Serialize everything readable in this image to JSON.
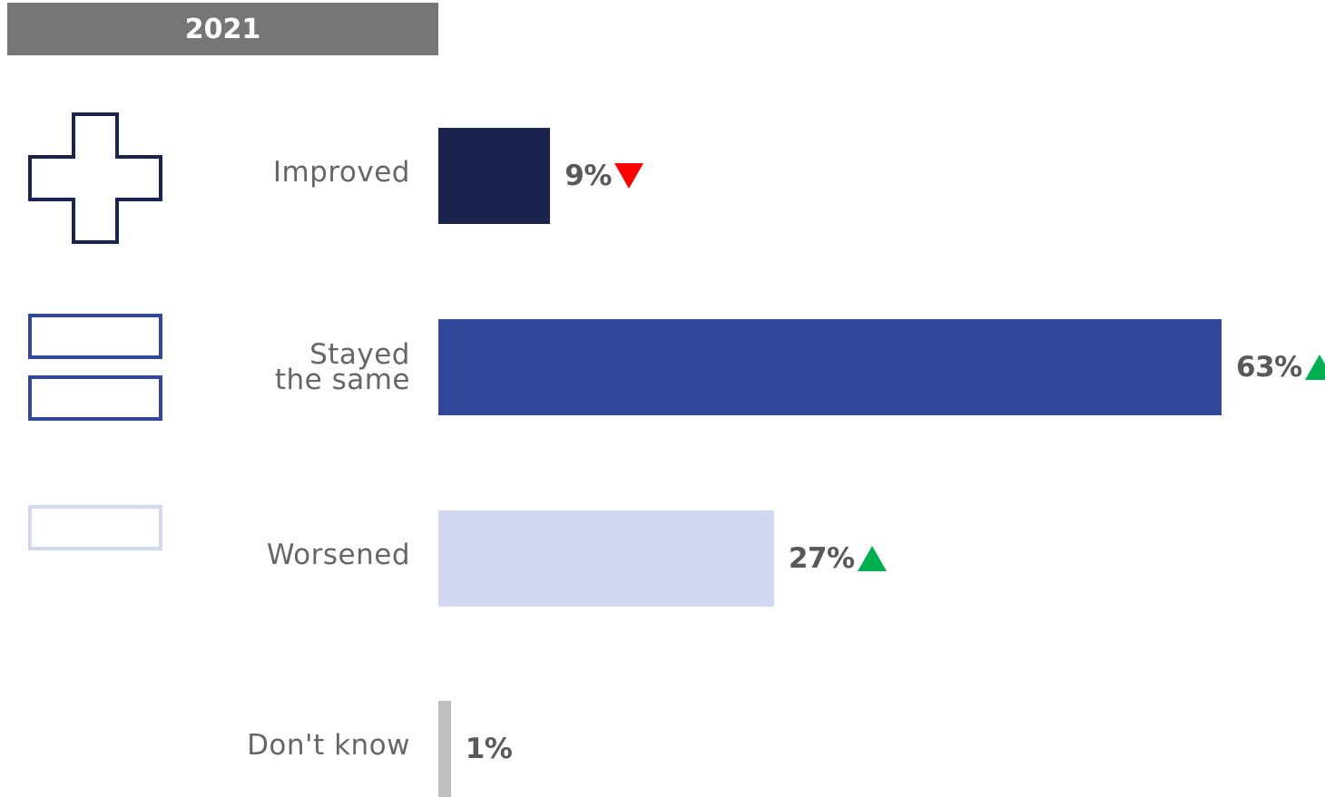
{
  "chart_data": {
    "type": "bar",
    "orientation": "horizontal",
    "title": "2021",
    "categories": [
      "Improved",
      "Stayed the same",
      "Worsened",
      "Don't know"
    ],
    "category_lines": [
      [
        "Improved"
      ],
      [
        "Stayed",
        "the same"
      ],
      [
        "Worsened"
      ],
      [
        "Don't know"
      ]
    ],
    "values": [
      9,
      63,
      27,
      1
    ],
    "value_labels": [
      "9%",
      "63%",
      "27%",
      "1%"
    ],
    "trend": [
      "down",
      "up",
      "up",
      "none"
    ],
    "bar_colors": [
      "#1a234d",
      "#30479a",
      "#d1d9f1",
      "#bfbfbf"
    ],
    "icons": [
      "plus-icon",
      "equals-icon",
      "minus-icon",
      "none"
    ],
    "trend_colors": {
      "up": "#00b050",
      "down": "#ff0000"
    },
    "xlim": [
      0,
      63
    ],
    "grid": false,
    "legend": "none"
  }
}
